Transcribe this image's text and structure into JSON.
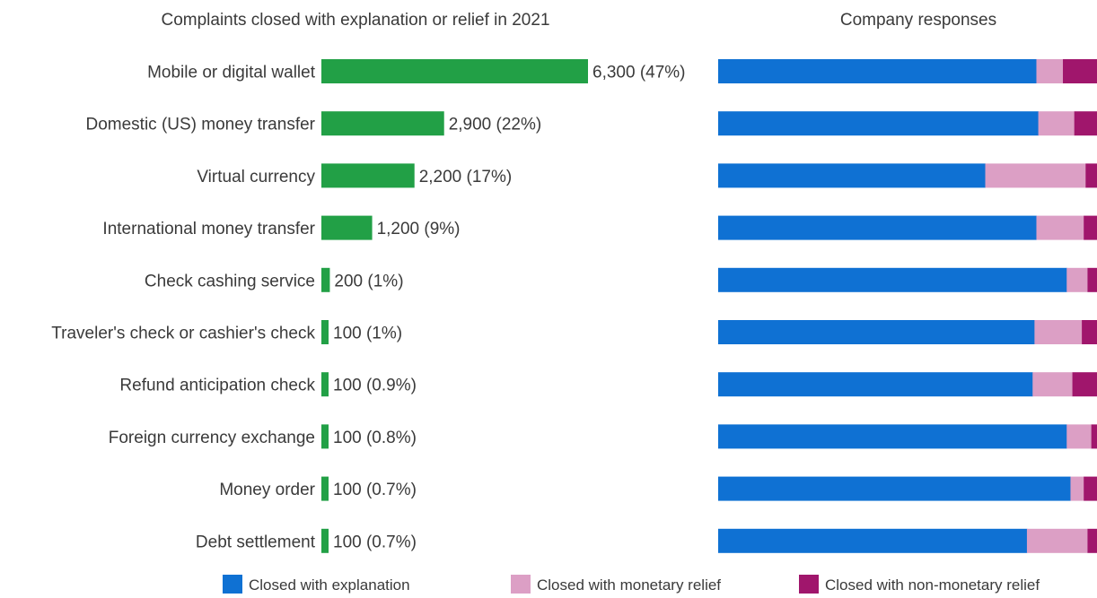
{
  "chart_data": [
    {
      "type": "bar",
      "orientation": "horizontal",
      "title": "Complaints closed with explanation or relief in 2021",
      "categories": [
        "Mobile or digital wallet",
        "Domestic (US) money transfer",
        "Virtual currency",
        "International money transfer",
        "Check cashing service",
        "Traveler's check or cashier's check",
        "Refund anticipation check",
        "Foreign currency exchange",
        "Money order",
        "Debt settlement"
      ],
      "values": [
        6300,
        2900,
        2200,
        1200,
        200,
        100,
        100,
        100,
        100,
        100
      ],
      "data_labels": [
        "6,300 (47%)",
        "2,900 (22%)",
        "2,200 (17%)",
        "1,200 (9%)",
        "200 (1%)",
        "100 (1%)",
        "100 (0.9%)",
        "100 (0.8%)",
        "100 (0.7%)",
        "100 (0.7%)"
      ],
      "color": "#22a046",
      "grid": false
    },
    {
      "type": "bar",
      "orientation": "horizontal",
      "stacked": "100%",
      "title": "Company responses",
      "categories": [
        "Mobile or digital wallet",
        "Domestic (US) money transfer",
        "Virtual currency",
        "International money transfer",
        "Check cashing service",
        "Traveler's check or cashier's check",
        "Refund anticipation check",
        "Foreign currency exchange",
        "Money order",
        "Debt settlement"
      ],
      "series": [
        {
          "name": "Closed with explanation",
          "color": "#0f71d3",
          "values": [
            84,
            84.5,
            70.5,
            84,
            92,
            83.5,
            83,
            92,
            93,
            81.5
          ]
        },
        {
          "name": "Closed with monetary relief",
          "color": "#dc9fc5",
          "values": [
            7,
            9.5,
            26.5,
            12.5,
            5.5,
            12.5,
            10.5,
            6.5,
            3.5,
            16
          ]
        },
        {
          "name": "Closed with non-monetary relief",
          "color": "#a0166c",
          "values": [
            9,
            6,
            3,
            3.5,
            2.5,
            4,
            6.5,
            1.5,
            3.5,
            2.5
          ]
        }
      ],
      "xlim": [
        0,
        100
      ],
      "legend_position": "bottom",
      "grid": false
    }
  ]
}
